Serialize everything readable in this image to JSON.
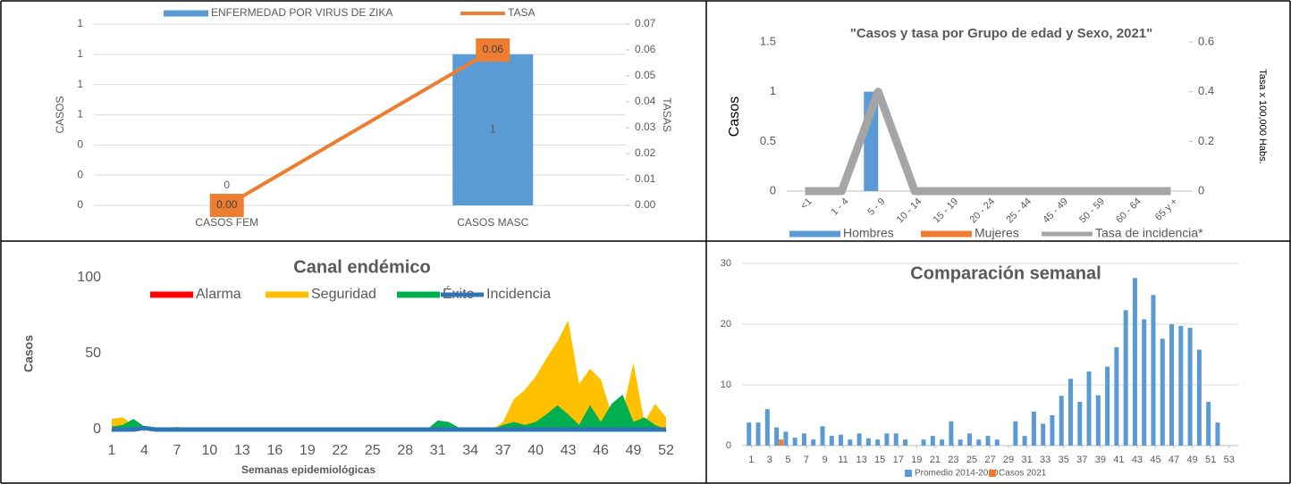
{
  "chart_data": [
    {
      "type": "bar",
      "categories": [
        "CASOS FEM",
        "CASOS MASC"
      ],
      "series": [
        {
          "name": "ENFERMEDAD POR VIRUS DE ZIKA",
          "color": "#5b9bd5",
          "values": [
            0,
            1
          ],
          "labels": true
        },
        {
          "name": "TASA",
          "type": "line",
          "axis": "y2",
          "color": "#ed7d31",
          "values": [
            0,
            0.06
          ],
          "value_labels": [
            "0.00",
            "0.06"
          ],
          "labels": true
        }
      ],
      "ylabel": "CASOS",
      "y2label": "TASAS",
      "ylim": [
        0,
        1.2
      ],
      "yticks": [
        0,
        {
          "value": 0.2,
          "label": "0"
        },
        {
          "value": 0.4,
          "label": "0"
        },
        {
          "value": 0.6,
          "label": "1"
        },
        {
          "value": 0.8,
          "label": "1"
        },
        1,
        {
          "value": 1.2,
          "label": "1"
        }
      ],
      "y2lim": [
        0,
        0.07
      ],
      "y2ticks": [
        {
          "value": 0,
          "label": "0.00"
        },
        {
          "value": 0.01,
          "label": "0.01"
        },
        {
          "value": 0.02,
          "label": "0.02"
        },
        {
          "value": 0.03,
          "label": "0.03"
        },
        {
          "value": 0.04,
          "label": "0.04"
        },
        {
          "value": 0.05,
          "label": "0.05"
        },
        {
          "value": 0.06,
          "label": "0.06"
        },
        {
          "value": 0.07,
          "label": "0.07"
        }
      ],
      "grid": true
    },
    {
      "type": "bar",
      "title": "\"Casos y tasa por Grupo de edad y Sexo, 2021\"",
      "categories": [
        "<1",
        "1 - 4",
        "5 - 9",
        "10 - 14",
        "15 - 19",
        "20 - 24",
        "25 - 44",
        "45 - 49",
        "50 - 59",
        "60 - 64",
        "65 y +"
      ],
      "series": [
        {
          "name": "Hombres",
          "color": "#5b9bd5",
          "values": [
            0,
            0,
            1,
            0,
            0,
            0,
            0,
            0,
            0,
            0,
            0
          ]
        },
        {
          "name": "Mujeres",
          "color": "#ed7d31",
          "values": [
            0,
            0,
            0,
            0,
            0,
            0,
            0,
            0,
            0,
            0,
            0
          ]
        },
        {
          "name": "Tasa de incidencia*",
          "type": "line",
          "axis": "y2",
          "color": "#a5a5a5",
          "values": [
            0,
            0,
            0.4,
            0,
            0,
            0,
            0,
            0,
            0,
            0,
            0
          ]
        }
      ],
      "ylabel": "Casos",
      "y2label": "Tasa x 100,000 Habs.",
      "ylim": [
        0,
        1.5
      ],
      "yticks": [
        0,
        0.5,
        1,
        1.5
      ],
      "y2lim": [
        0,
        0.6
      ],
      "y2ticks": [
        0,
        0.2,
        0.4,
        0.6
      ],
      "grid": false
    },
    {
      "type": "area",
      "title": "Canal endémico",
      "x": [
        1,
        2,
        3,
        4,
        5,
        6,
        7,
        8,
        9,
        10,
        11,
        12,
        13,
        14,
        15,
        16,
        17,
        18,
        19,
        20,
        21,
        22,
        23,
        24,
        25,
        26,
        27,
        28,
        29,
        30,
        31,
        32,
        33,
        34,
        35,
        36,
        37,
        38,
        39,
        40,
        41,
        42,
        43,
        44,
        45,
        46,
        47,
        48,
        49,
        50,
        51,
        52
      ],
      "series": [
        {
          "name": "Alarma",
          "color": "#ff0000",
          "values": [
            0,
            0,
            0,
            0,
            0,
            0,
            0,
            0,
            0,
            0,
            0,
            0,
            0,
            0,
            0,
            0,
            0,
            0,
            0,
            0,
            0,
            0,
            0,
            0,
            0,
            0,
            0,
            0,
            0,
            0,
            0,
            0,
            0,
            0,
            0,
            0,
            0,
            0,
            0,
            0,
            0,
            0,
            0,
            0,
            0,
            0,
            0,
            0,
            0,
            0,
            0,
            0
          ]
        },
        {
          "name": "Seguridad",
          "color": "#ffc000",
          "values": [
            7,
            8,
            3,
            2,
            0,
            0,
            2,
            0,
            0,
            0,
            0,
            0,
            0,
            0,
            0,
            0,
            0,
            0,
            0,
            0,
            0,
            0,
            0,
            0,
            0,
            0,
            0,
            0,
            0,
            0,
            0,
            0,
            0,
            0,
            0,
            0,
            5,
            20,
            26,
            35,
            47,
            58,
            72,
            30,
            40,
            33,
            10,
            12,
            44,
            5,
            17,
            8
          ]
        },
        {
          "name": "Éxito",
          "color": "#00b050",
          "values": [
            2,
            3,
            7,
            2,
            0,
            0,
            0,
            0,
            0,
            0,
            0,
            0,
            0,
            0,
            0,
            0,
            0,
            0,
            0,
            0,
            0,
            0,
            0,
            0,
            0,
            0,
            0,
            0,
            0,
            0,
            6,
            5,
            1,
            0,
            0,
            0,
            3,
            5,
            3,
            5,
            10,
            16,
            10,
            3,
            16,
            5,
            17,
            23,
            5,
            8,
            3,
            0
          ]
        },
        {
          "name": "Incidencia",
          "type": "line",
          "color": "#2e75b6",
          "values": [
            0,
            0,
            0,
            1,
            0,
            0,
            0,
            0,
            0,
            0,
            0,
            0,
            0,
            0,
            0,
            0,
            0,
            0,
            0,
            0,
            0,
            0,
            0,
            0,
            0,
            0,
            0,
            0,
            0,
            0,
            0,
            0,
            0,
            0,
            0,
            0,
            0,
            0,
            0,
            0,
            0,
            0,
            0,
            0,
            0,
            0,
            0,
            0,
            0,
            0,
            0,
            0
          ]
        }
      ],
      "ylabel": "Casos",
      "xlabel": "Semanas epidemiológicas",
      "xlim": [
        1,
        52
      ],
      "xticks": [
        1,
        4,
        7,
        10,
        13,
        16,
        19,
        22,
        25,
        28,
        31,
        34,
        37,
        40,
        43,
        46,
        49,
        52
      ],
      "ylim": [
        0,
        100
      ],
      "yticks": [
        0,
        50,
        100
      ],
      "grid": false
    },
    {
      "type": "bar",
      "title": "Comparación semanal",
      "x": [
        1,
        2,
        3,
        4,
        5,
        6,
        7,
        8,
        9,
        10,
        11,
        12,
        13,
        14,
        15,
        16,
        17,
        18,
        19,
        20,
        21,
        22,
        23,
        24,
        25,
        26,
        27,
        28,
        29,
        30,
        31,
        32,
        33,
        34,
        35,
        36,
        37,
        38,
        39,
        40,
        41,
        42,
        43,
        44,
        45,
        46,
        47,
        48,
        49,
        50,
        51,
        52,
        53
      ],
      "series": [
        {
          "name": "Promedio 2014-2020",
          "color": "#5b9bd5",
          "values": [
            3.8,
            3.8,
            6,
            3,
            2.3,
            1.3,
            2,
            1,
            3.2,
            1.6,
            1.8,
            1,
            2,
            1.2,
            1,
            2,
            2,
            1,
            0,
            1,
            1.6,
            1,
            4,
            1,
            2,
            1,
            1.6,
            1,
            0,
            4,
            1.6,
            5.6,
            3.6,
            5,
            8.2,
            11,
            7.2,
            12.2,
            8.3,
            13,
            16.2,
            22.3,
            27.6,
            20.8,
            24.8,
            17.6,
            20,
            19.7,
            19.4,
            15.8,
            7.2,
            3.8,
            0
          ]
        },
        {
          "name": "Casos 2021",
          "color": "#ed7d31",
          "values": [
            0,
            0,
            0,
            1,
            0,
            0,
            0,
            0,
            0,
            0,
            0,
            0,
            0,
            0,
            0,
            0,
            0,
            0,
            0,
            0,
            0,
            0,
            0,
            0,
            0,
            0,
            0,
            0,
            0,
            0,
            0,
            0,
            0,
            0,
            0,
            0,
            0,
            0,
            0,
            0,
            0,
            0,
            0,
            0,
            0,
            0,
            0,
            0,
            0,
            0,
            0,
            0,
            0
          ]
        }
      ],
      "xlim": [
        0,
        54
      ],
      "xticks": [
        1,
        3,
        5,
        7,
        9,
        11,
        13,
        15,
        17,
        19,
        21,
        23,
        25,
        27,
        29,
        31,
        33,
        35,
        37,
        39,
        41,
        43,
        45,
        47,
        49,
        51,
        53
      ],
      "ylim": [
        0,
        30
      ],
      "yticks": [
        0,
        10,
        20,
        30
      ],
      "grid": true
    }
  ]
}
